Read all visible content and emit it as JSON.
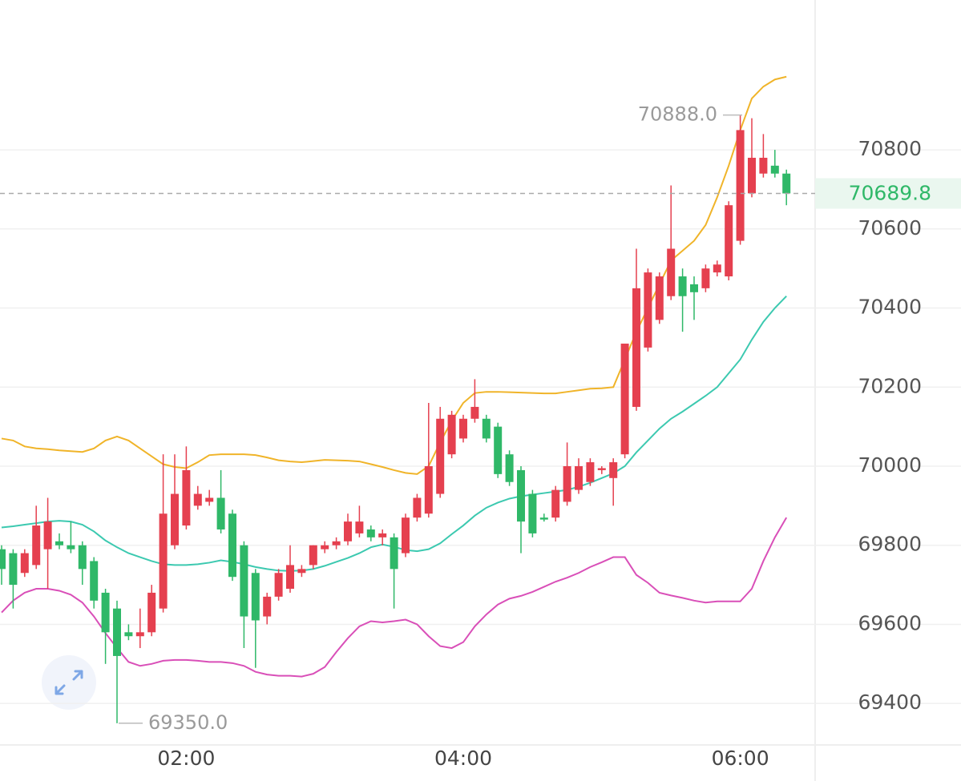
{
  "chart_data": {
    "type": "candlestick",
    "categories": [
      null,
      null,
      null,
      null,
      null,
      null,
      null,
      null,
      null,
      null,
      null,
      null,
      null,
      null,
      null,
      null,
      "02:00",
      null,
      null,
      null,
      null,
      null,
      null,
      null,
      null,
      null,
      null,
      null,
      null,
      null,
      null,
      null,
      null,
      null,
      null,
      null,
      null,
      null,
      null,
      null,
      "04:00",
      null,
      null,
      null,
      null,
      null,
      null,
      null,
      null,
      null,
      null,
      null,
      null,
      null,
      null,
      null,
      null,
      null,
      null,
      null,
      null,
      null,
      null,
      null,
      "06:00",
      null,
      null,
      null,
      null
    ],
    "open": [
      69790,
      69780,
      69730,
      69750,
      69790,
      69810,
      69800,
      69800,
      69760,
      69680,
      69640,
      69580,
      69570,
      69580,
      69640,
      69800,
      69850,
      69900,
      69910,
      69920,
      69880,
      69800,
      69730,
      69620,
      69670,
      69690,
      69730,
      69750,
      69790,
      69800,
      69810,
      69830,
      69840,
      69820,
      69820,
      69780,
      69870,
      69880,
      69930,
      70030,
      70070,
      70120,
      70120,
      70100,
      70030,
      69990,
      69930,
      69870,
      69870,
      69910,
      69940,
      69960,
      69990,
      69970,
      70030,
      70150,
      70300,
      70370,
      70430,
      70480,
      70460,
      70450,
      70490,
      70480,
      70570,
      70690,
      70740,
      70760,
      70740
    ],
    "high": [
      69800,
      69790,
      69790,
      69900,
      69920,
      69830,
      69860,
      69810,
      69770,
      69690,
      69660,
      69600,
      69640,
      69700,
      70030,
      70030,
      70050,
      69950,
      69940,
      69990,
      69890,
      69810,
      69740,
      69680,
      69740,
      69800,
      69750,
      69800,
      69810,
      69820,
      69880,
      69900,
      69850,
      69840,
      69830,
      69880,
      69930,
      70160,
      70150,
      70140,
      70130,
      70220,
      70130,
      70110,
      70040,
      70000,
      69940,
      69880,
      69950,
      70060,
      70020,
      70020,
      70000,
      70020,
      70310,
      70550,
      70500,
      70490,
      70710,
      70500,
      70480,
      70510,
      70520,
      70670,
      70888,
      70880,
      70840,
      70800,
      70750
    ],
    "low": [
      69700,
      69640,
      69720,
      69740,
      69690,
      69790,
      69780,
      69700,
      69640,
      69500,
      69350,
      69560,
      69540,
      69570,
      69630,
      69790,
      69840,
      69890,
      69900,
      69830,
      69710,
      69540,
      69490,
      69600,
      69660,
      69680,
      69720,
      69740,
      69780,
      69790,
      69800,
      69820,
      69810,
      69800,
      69640,
      69770,
      69860,
      69870,
      69920,
      70020,
      70060,
      70110,
      70060,
      69970,
      69950,
      69780,
      69820,
      69860,
      69860,
      69900,
      69930,
      69950,
      69980,
      69900,
      70020,
      70140,
      70290,
      70360,
      70420,
      70340,
      70370,
      70440,
      70480,
      70470,
      70560,
      70680,
      70730,
      70730,
      70660
    ],
    "close": [
      69740,
      69700,
      69780,
      69850,
      69860,
      69800,
      69790,
      69740,
      69660,
      69580,
      69520,
      69570,
      69580,
      69680,
      69880,
      69930,
      69990,
      69930,
      69920,
      69840,
      69720,
      69620,
      69610,
      69670,
      69730,
      69750,
      69740,
      69800,
      69800,
      69810,
      69860,
      69860,
      69820,
      69830,
      69740,
      69870,
      69920,
      70000,
      70120,
      70130,
      70120,
      70150,
      70070,
      69980,
      69960,
      69860,
      69830,
      69865,
      69940,
      70000,
      70000,
      70010,
      69995,
      70010,
      70310,
      70450,
      70490,
      70480,
      70550,
      70430,
      70440,
      70500,
      70510,
      70660,
      70850,
      70780,
      70780,
      70740,
      70689.8
    ],
    "up_color": "#e5404f",
    "down_color": "#2fb868",
    "series": [
      {
        "color": "#f0b429",
        "values": [
          70070,
          70065,
          70050,
          70045,
          70043,
          70040,
          70038,
          70036,
          70045,
          70065,
          70075,
          70065,
          70045,
          70025,
          70005,
          69998,
          69995,
          70010,
          70028,
          70030,
          70030,
          70030,
          70028,
          70022,
          70015,
          70012,
          70010,
          70013,
          70016,
          70015,
          70014,
          70012,
          70005,
          69998,
          69990,
          69983,
          69980,
          70000,
          70060,
          70115,
          70160,
          70185,
          70188,
          70188,
          70187,
          70186,
          70185,
          70184,
          70184,
          70188,
          70192,
          70196,
          70197,
          70200,
          70270,
          70340,
          70400,
          70460,
          70520,
          70545,
          70570,
          70610,
          70680,
          70760,
          70850,
          70930,
          70960,
          70978,
          70985
        ]
      },
      {
        "color": "#3cc9b0",
        "values": [
          69845,
          69848,
          69852,
          69856,
          69860,
          69862,
          69860,
          69852,
          69835,
          69812,
          69795,
          69780,
          69770,
          69760,
          69752,
          69750,
          69750,
          69752,
          69756,
          69762,
          69758,
          69752,
          69745,
          69740,
          69736,
          69735,
          69736,
          69740,
          69748,
          69758,
          69768,
          69780,
          69795,
          69802,
          69796,
          69788,
          69785,
          69790,
          69805,
          69828,
          69850,
          69875,
          69895,
          69908,
          69918,
          69924,
          69928,
          69932,
          69936,
          69940,
          69948,
          69958,
          69970,
          69982,
          70000,
          70035,
          70065,
          70095,
          70120,
          70138,
          70158,
          70178,
          70200,
          70235,
          70270,
          70320,
          70365,
          70400,
          70430
        ]
      },
      {
        "color": "#d94fb8",
        "values": [
          69630,
          69660,
          69680,
          69690,
          69690,
          69685,
          69675,
          69655,
          69620,
          69578,
          69540,
          69505,
          69495,
          69500,
          69508,
          69510,
          69510,
          69508,
          69505,
          69505,
          69502,
          69495,
          69480,
          69473,
          69470,
          69470,
          69468,
          69475,
          69492,
          69530,
          69565,
          69595,
          69608,
          69605,
          69608,
          69612,
          69600,
          69570,
          69545,
          69540,
          69555,
          69595,
          69625,
          69650,
          69665,
          69672,
          69682,
          69695,
          69708,
          69718,
          69730,
          69745,
          69757,
          69770,
          69770,
          69725,
          69705,
          69680,
          69673,
          69667,
          69660,
          69655,
          69658,
          69658,
          69658,
          69690,
          69760,
          69820,
          69870
        ]
      }
    ],
    "ylim": [
      69295,
      71179
    ],
    "yticks": [
      69400,
      69600,
      69800,
      70000,
      70200,
      70400,
      70600,
      70800
    ],
    "grid": true,
    "max_marker": {
      "value": 70888,
      "label": "70888.0"
    },
    "min_marker": {
      "value": 69350,
      "label": "69350.0"
    },
    "last_price": {
      "value": 70689.8,
      "label": "70689.8",
      "color": "#2fb868"
    }
  }
}
